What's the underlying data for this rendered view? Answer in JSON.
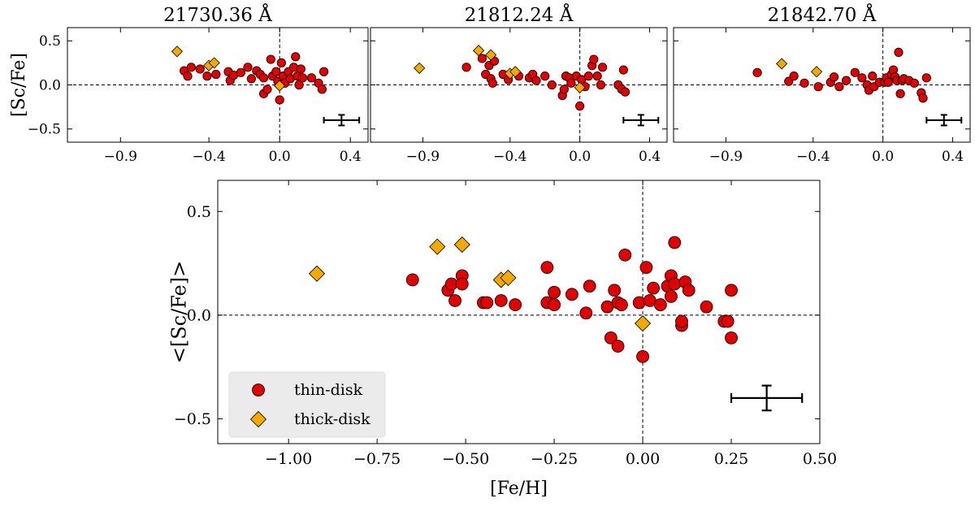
{
  "chart_data": [
    {
      "type": "scatter",
      "title": "21730.36 Å",
      "xlabel": "",
      "ylabel": "[Sc/Fe]",
      "xlim": [
        -1.2,
        0.5
      ],
      "ylim": [
        -0.65,
        0.65
      ],
      "xticks": [
        -0.9,
        -0.4,
        0.0,
        0.4
      ],
      "xtick_labels": [
        "−0.9",
        "−0.4",
        "0.0",
        "0.4"
      ],
      "yticks": [
        0.5,
        0.0,
        -0.5
      ],
      "ytick_labels": [
        "0.5",
        "0.0",
        "−0.5"
      ],
      "series": [
        {
          "name": "thin-disk",
          "marker": "circle",
          "color": "#e00000",
          "points": [
            [
              -0.54,
              0.16
            ],
            [
              -0.52,
              0.1
            ],
            [
              -0.5,
              0.2
            ],
            [
              -0.45,
              0.18
            ],
            [
              -0.41,
              0.1
            ],
            [
              -0.36,
              0.12
            ],
            [
              -0.29,
              0.15
            ],
            [
              -0.28,
              0.05
            ],
            [
              -0.26,
              0.11
            ],
            [
              -0.22,
              0.14
            ],
            [
              -0.18,
              0.2
            ],
            [
              -0.16,
              0.07
            ],
            [
              -0.13,
              0.16
            ],
            [
              -0.11,
              0.12
            ],
            [
              -0.09,
              0.08
            ],
            [
              -0.09,
              -0.1
            ],
            [
              -0.07,
              -0.05
            ],
            [
              -0.05,
              0.29
            ],
            [
              -0.04,
              0.1
            ],
            [
              -0.02,
              0.15
            ],
            [
              -0.01,
              0.04
            ],
            [
              0.0,
              -0.17
            ],
            [
              0.01,
              0.25
            ],
            [
              0.02,
              0.1
            ],
            [
              0.03,
              0.02
            ],
            [
              0.05,
              0.15
            ],
            [
              0.06,
              0.07
            ],
            [
              0.08,
              0.2
            ],
            [
              0.09,
              0.32
            ],
            [
              0.1,
              0.1
            ],
            [
              0.11,
              0.0
            ],
            [
              0.12,
              0.18
            ],
            [
              0.13,
              0.08
            ],
            [
              0.18,
              0.08
            ],
            [
              0.22,
              0.02
            ],
            [
              0.24,
              -0.05
            ],
            [
              0.25,
              0.15
            ]
          ]
        },
        {
          "name": "thick-disk",
          "marker": "diamond",
          "color": "#f5a800",
          "points": [
            [
              -0.58,
              0.38
            ],
            [
              -0.4,
              0.22
            ],
            [
              -0.37,
              0.25
            ],
            [
              0.0,
              -0.01
            ]
          ]
        }
      ],
      "error_bar": {
        "x": 0.35,
        "y": -0.4,
        "xerr": 0.1,
        "yerr": 0.06
      },
      "reference_lines": {
        "x": 0.0,
        "y": 0.0
      }
    },
    {
      "type": "scatter",
      "title": "21812.24 Å",
      "xlabel": "",
      "ylabel": "",
      "xlim": [
        -1.2,
        0.5
      ],
      "ylim": [
        -0.65,
        0.65
      ],
      "xticks": [
        -0.9,
        -0.4,
        0.0,
        0.4
      ],
      "xtick_labels": [
        "−0.9",
        "−0.4",
        "0.0",
        "0.4"
      ],
      "yticks": [
        0.5,
        0.0,
        -0.5
      ],
      "ytick_labels": [],
      "series": [
        {
          "name": "thin-disk",
          "marker": "circle",
          "color": "#e00000",
          "points": [
            [
              -0.65,
              0.2
            ],
            [
              -0.56,
              0.3
            ],
            [
              -0.54,
              0.12
            ],
            [
              -0.52,
              0.22
            ],
            [
              -0.51,
              0.07
            ],
            [
              -0.5,
              0.02
            ],
            [
              -0.49,
              0.27
            ],
            [
              -0.44,
              0.12
            ],
            [
              -0.41,
              0.06
            ],
            [
              -0.35,
              0.1
            ],
            [
              -0.29,
              0.08
            ],
            [
              -0.27,
              0.12
            ],
            [
              -0.25,
              0.05
            ],
            [
              -0.2,
              0.1
            ],
            [
              -0.16,
              0.0
            ],
            [
              -0.1,
              -0.12
            ],
            [
              -0.09,
              -0.05
            ],
            [
              -0.08,
              0.1
            ],
            [
              -0.06,
              0.08
            ],
            [
              -0.05,
              0.02
            ],
            [
              -0.02,
              0.1
            ],
            [
              0.0,
              -0.24
            ],
            [
              0.01,
              0.06
            ],
            [
              0.03,
              -0.02
            ],
            [
              0.05,
              0.1
            ],
            [
              0.07,
              0.22
            ],
            [
              0.08,
              0.29
            ],
            [
              0.1,
              0.1
            ],
            [
              0.12,
              0.0
            ],
            [
              0.13,
              0.2
            ],
            [
              0.22,
              0.0
            ],
            [
              0.24,
              -0.05
            ],
            [
              0.25,
              0.17
            ],
            [
              0.26,
              -0.08
            ]
          ]
        },
        {
          "name": "thick-disk",
          "marker": "diamond",
          "color": "#f5a800",
          "points": [
            [
              -0.92,
              0.19
            ],
            [
              -0.58,
              0.39
            ],
            [
              -0.51,
              0.34
            ],
            [
              -0.4,
              0.13
            ],
            [
              -0.37,
              0.15
            ],
            [
              0.0,
              -0.03
            ]
          ]
        }
      ],
      "error_bar": {
        "x": 0.35,
        "y": -0.4,
        "xerr": 0.1,
        "yerr": 0.06
      },
      "reference_lines": {
        "x": 0.0,
        "y": 0.0
      }
    },
    {
      "type": "scatter",
      "title": "21842.70 Å",
      "xlabel": "",
      "ylabel": "",
      "xlim": [
        -1.2,
        0.5
      ],
      "ylim": [
        -0.65,
        0.65
      ],
      "xticks": [
        -0.9,
        -0.4,
        0.0,
        0.4
      ],
      "xtick_labels": [
        "−0.9",
        "−0.4",
        "0.0",
        "0.4"
      ],
      "yticks": [
        0.5,
        0.0,
        -0.5
      ],
      "ytick_labels": [],
      "series": [
        {
          "name": "thin-disk",
          "marker": "circle",
          "color": "#e00000",
          "points": [
            [
              -0.72,
              0.14
            ],
            [
              -0.54,
              0.04
            ],
            [
              -0.51,
              0.1
            ],
            [
              -0.45,
              0.02
            ],
            [
              -0.37,
              -0.02
            ],
            [
              -0.3,
              0.03
            ],
            [
              -0.28,
              0.09
            ],
            [
              -0.25,
              -0.02
            ],
            [
              -0.21,
              0.05
            ],
            [
              -0.16,
              0.14
            ],
            [
              -0.12,
              0.08
            ],
            [
              -0.09,
              0.0
            ],
            [
              -0.08,
              -0.06
            ],
            [
              -0.06,
              0.1
            ],
            [
              -0.05,
              -0.02
            ],
            [
              -0.02,
              0.03
            ],
            [
              0.01,
              0.03
            ],
            [
              0.02,
              0.08
            ],
            [
              0.03,
              0.03
            ],
            [
              0.05,
              0.12
            ],
            [
              0.06,
              0.17
            ],
            [
              0.07,
              0.09
            ],
            [
              0.08,
              0.05
            ],
            [
              0.09,
              0.37
            ],
            [
              0.1,
              -0.1
            ],
            [
              0.11,
              0.05
            ],
            [
              0.12,
              0.07
            ],
            [
              0.15,
              0.05
            ],
            [
              0.18,
              0.02
            ],
            [
              0.22,
              -0.09
            ],
            [
              0.23,
              -0.15
            ],
            [
              0.25,
              0.08
            ]
          ]
        },
        {
          "name": "thick-disk",
          "marker": "diamond",
          "color": "#f5a800",
          "points": [
            [
              -0.58,
              0.24
            ],
            [
              -0.38,
              0.15
            ]
          ]
        }
      ],
      "error_bar": {
        "x": 0.35,
        "y": -0.4,
        "xerr": 0.1,
        "yerr": 0.06
      },
      "reference_lines": {
        "x": 0.0,
        "y": 0.0
      }
    },
    {
      "type": "scatter",
      "title": "",
      "xlabel": "[Fe/H]",
      "ylabel": "<[Sc/Fe]>",
      "xlim": [
        -1.2,
        0.5
      ],
      "ylim": [
        -0.62,
        0.65
      ],
      "xticks": [
        -1.0,
        -0.75,
        -0.5,
        -0.25,
        0.0,
        0.25,
        0.5
      ],
      "xtick_labels": [
        "−1.00",
        "−0.75",
        "−0.50",
        "−0.25",
        "0.00",
        "0.25",
        "0.50"
      ],
      "yticks": [
        0.5,
        0.0,
        -0.5
      ],
      "ytick_labels": [
        "0.5",
        "0.0",
        "−0.5"
      ],
      "series": [
        {
          "name": "thin-disk",
          "marker": "circle",
          "color": "#e00000",
          "points": [
            [
              -0.65,
              0.17
            ],
            [
              -0.55,
              0.12
            ],
            [
              -0.54,
              0.15
            ],
            [
              -0.53,
              0.07
            ],
            [
              -0.51,
              0.19
            ],
            [
              -0.51,
              0.15
            ],
            [
              -0.45,
              0.06
            ],
            [
              -0.44,
              0.06
            ],
            [
              -0.4,
              0.07
            ],
            [
              -0.36,
              0.05
            ],
            [
              -0.27,
              0.23
            ],
            [
              -0.27,
              0.06
            ],
            [
              -0.25,
              0.11
            ],
            [
              -0.25,
              0.05
            ],
            [
              -0.2,
              0.1
            ],
            [
              -0.15,
              0.14
            ],
            [
              -0.16,
              0.01
            ],
            [
              -0.1,
              0.04
            ],
            [
              -0.08,
              0.12
            ],
            [
              -0.07,
              0.06
            ],
            [
              -0.06,
              0.05
            ],
            [
              -0.09,
              -0.11
            ],
            [
              -0.07,
              -0.15
            ],
            [
              -0.05,
              0.29
            ],
            [
              -0.01,
              0.06
            ],
            [
              0.0,
              -0.2
            ],
            [
              0.01,
              0.23
            ],
            [
              0.02,
              0.07
            ],
            [
              0.03,
              0.13
            ],
            [
              0.05,
              0.05
            ],
            [
              0.07,
              0.14
            ],
            [
              0.08,
              0.19
            ],
            [
              0.08,
              0.09
            ],
            [
              0.09,
              0.15
            ],
            [
              0.09,
              0.35
            ],
            [
              0.11,
              -0.05
            ],
            [
              0.11,
              -0.03
            ],
            [
              0.12,
              0.16
            ],
            [
              0.13,
              0.12
            ],
            [
              0.18,
              0.04
            ],
            [
              0.23,
              -0.03
            ],
            [
              0.24,
              -0.03
            ],
            [
              0.25,
              -0.11
            ],
            [
              0.25,
              0.12
            ]
          ]
        },
        {
          "name": "thick-disk",
          "marker": "diamond",
          "color": "#f5a800",
          "points": [
            [
              -0.92,
              0.2
            ],
            [
              -0.58,
              0.33
            ],
            [
              -0.51,
              0.34
            ],
            [
              -0.4,
              0.17
            ],
            [
              -0.38,
              0.18
            ],
            [
              0.0,
              -0.04
            ]
          ]
        }
      ],
      "error_bar": {
        "x": 0.35,
        "y": -0.4,
        "xerr": 0.1,
        "yerr": 0.06
      },
      "reference_lines": {
        "x": 0.0,
        "y": 0.0
      },
      "legend": {
        "location": "lower-left",
        "entries": [
          "thin-disk",
          "thick-disk"
        ]
      }
    }
  ]
}
